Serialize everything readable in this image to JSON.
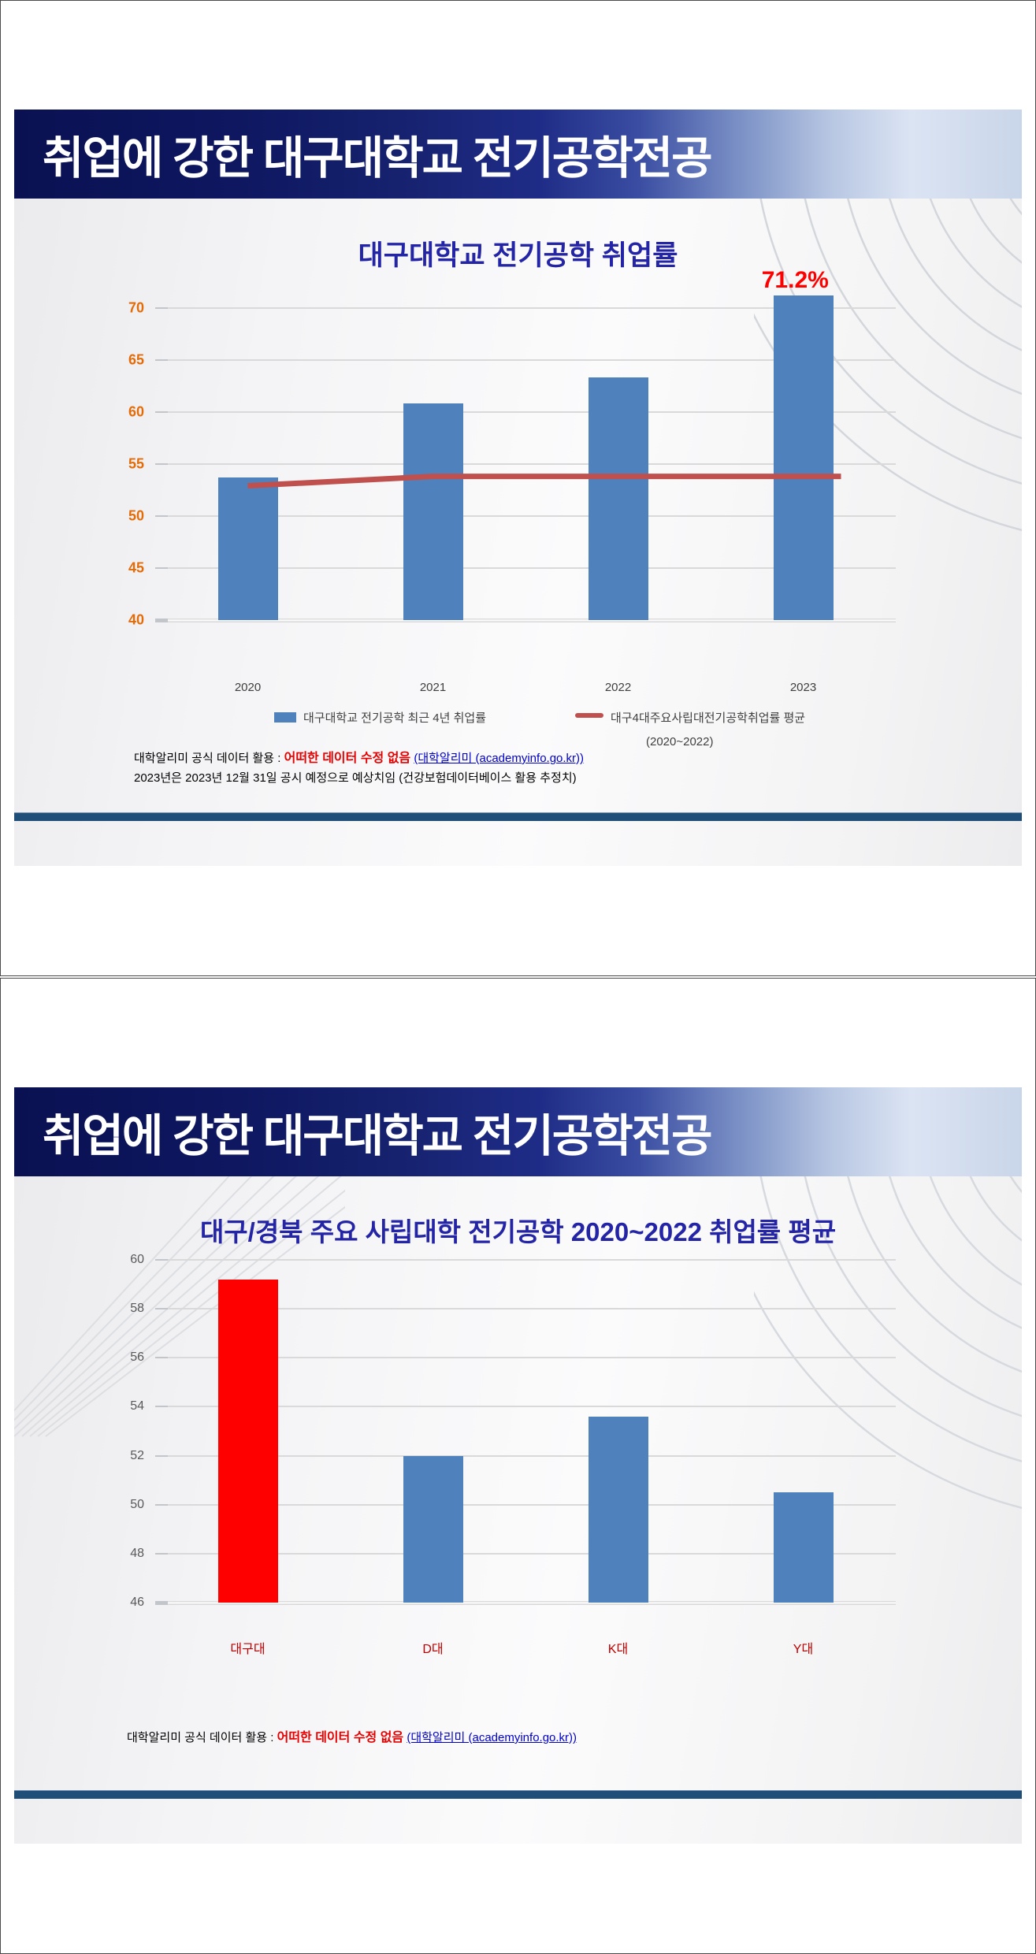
{
  "slide1": {
    "header_title": "취업에 강한 대구대학교 전기공학전공",
    "chart_title": "대구대학교 전기공학 취업률",
    "legend": {
      "bar_label": "대구대학교 전기공학 최근 4년 취업률",
      "line_label": "대구4대주요사립대전기공학취업률 평균",
      "line_sublabel": "(2020~2022)"
    },
    "footnote": {
      "prefix": "대학알리미 공식 데이터 활용 : ",
      "highlight": "어떠한 데이터 수정 없음",
      "link": "(대학알리미 (academyinfo.go.kr))",
      "line2": "2023년은 2023년 12월 31일 공시 예정으로 예상치임 (건강보험데이터베이스 활용 추정치)"
    }
  },
  "slide2": {
    "header_title": "취업에 강한 대구대학교 전기공학전공",
    "chart_title": "대구/경북 주요 사립대학  전기공학 2020~2022 취업률 평균",
    "footnote": {
      "prefix": "대학알리미 공식 데이터 활용 : ",
      "highlight": "어떠한 데이터 수정 없음",
      "link": "(대학알리미 (academyinfo.go.kr))"
    }
  },
  "chart_data": [
    {
      "type": "bar",
      "title": "대구대학교 전기공학 취업률",
      "categories": [
        "2020",
        "2021",
        "2022",
        "2023"
      ],
      "series": [
        {
          "name": "대구대학교 전기공학 최근 4년 취업률",
          "type": "bar",
          "color": "#4f81bd",
          "values": [
            53.7,
            60.8,
            63.3,
            71.2
          ]
        },
        {
          "name": "대구4대주요사립대전기공학취업률 평균 (2020~2022)",
          "type": "line",
          "color": "#c0504d",
          "values": [
            52.9,
            53.8,
            53.8,
            53.8
          ]
        }
      ],
      "ylim": [
        40,
        70
      ],
      "yticks": [
        40,
        45,
        50,
        55,
        60,
        65,
        70
      ],
      "grid": true,
      "legend_position": "bottom",
      "annotations": [
        {
          "category": "2023",
          "text": "71.2%",
          "color": "#ff0000"
        }
      ],
      "ytick_color": "#e36c09",
      "xtick_color": "#3f3f3f"
    },
    {
      "type": "bar",
      "title": "대구/경북 주요 사립대학  전기공학 2020~2022 취업률 평균",
      "categories": [
        "대구대",
        "D대",
        "K대",
        "Y대"
      ],
      "values": [
        59.2,
        52.0,
        53.6,
        50.5
      ],
      "bar_colors": [
        "#ff0000",
        "#4f81bd",
        "#4f81bd",
        "#4f81bd"
      ],
      "ylim": [
        46,
        60
      ],
      "yticks": [
        46,
        48,
        50,
        52,
        54,
        56,
        58,
        60
      ],
      "grid": true,
      "legend_position": "none",
      "ytick_color": "#595959",
      "xtick_color": "#c00000"
    }
  ],
  "colors": {
    "banner_dark": "#0a1152",
    "banner_light": "#cdd9ec",
    "accent_band": "#1f4e79",
    "title_navy": "#2424a6",
    "bar_blue": "#4f81bd",
    "bar_red": "#ff0000",
    "trend_red": "#c0504d",
    "axis_orange": "#e36c09",
    "category_red": "#c00000",
    "footnote_red": "#e60000",
    "link_blue": "#0000cc"
  }
}
